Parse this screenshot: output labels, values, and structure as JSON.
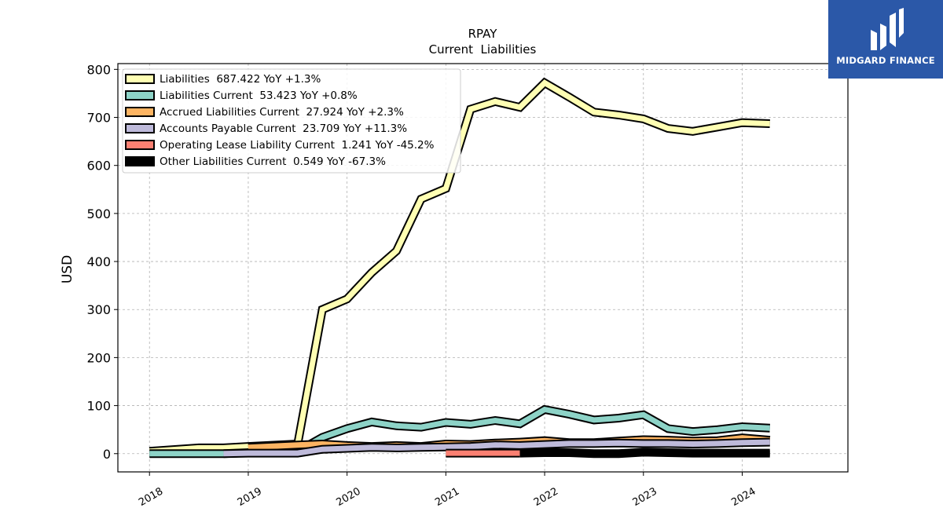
{
  "brand": {
    "name": "MIDGARD FINANCE",
    "bg_color": "#2b58a8",
    "icon": "midgard-logo-icon"
  },
  "chart_data": {
    "type": "line",
    "title": "RPAY",
    "subtitle": "Current  Liabilities",
    "xlabel": "",
    "ylabel": "USD",
    "ylim": [
      -38,
      812
    ],
    "yticks": [
      0,
      100,
      200,
      300,
      400,
      500,
      600,
      700,
      800
    ],
    "xlim": [
      2017.68,
      2025.07
    ],
    "xticks": [
      2018,
      2019,
      2020,
      2021,
      2022,
      2023,
      2024
    ],
    "xtick_labels": [
      "2018",
      "2019",
      "2020",
      "2021",
      "2022",
      "2023",
      "2024"
    ],
    "grid": true,
    "legend_position": "top-left",
    "series": [
      {
        "name": "Liabilities",
        "legend": "Liabilities  687.422 YoY +1.3%",
        "color": "#ffffb3",
        "points": [
          [
            2018.0,
            5
          ],
          [
            2018.5,
            12
          ],
          [
            2018.75,
            12
          ],
          [
            2019.0,
            15
          ],
          [
            2019.5,
            20
          ],
          [
            2019.75,
            300
          ],
          [
            2020.0,
            322
          ],
          [
            2020.25,
            377
          ],
          [
            2020.5,
            422
          ],
          [
            2020.75,
            530
          ],
          [
            2021.0,
            552
          ],
          [
            2021.25,
            717
          ],
          [
            2021.5,
            733
          ],
          [
            2021.75,
            721
          ],
          [
            2022.0,
            772
          ],
          [
            2022.25,
            742
          ],
          [
            2022.5,
            711
          ],
          [
            2022.75,
            705
          ],
          [
            2023.0,
            697
          ],
          [
            2023.25,
            677
          ],
          [
            2023.5,
            671
          ],
          [
            2023.75,
            680
          ],
          [
            2024.0,
            689
          ],
          [
            2024.28,
            687
          ]
        ]
      },
      {
        "name": "Liabilities Current",
        "legend": "Liabilities Current  53.423 YoY +0.8%",
        "color": "#8dd3c7",
        "points": [
          [
            2018.0,
            0
          ],
          [
            2018.75,
            0
          ],
          [
            2019.0,
            2
          ],
          [
            2019.5,
            5
          ],
          [
            2019.75,
            34
          ],
          [
            2020.0,
            52
          ],
          [
            2020.25,
            66
          ],
          [
            2020.5,
            58
          ],
          [
            2020.75,
            55
          ],
          [
            2021.0,
            65
          ],
          [
            2021.25,
            61
          ],
          [
            2021.5,
            69
          ],
          [
            2021.75,
            62
          ],
          [
            2022.0,
            92
          ],
          [
            2022.25,
            82
          ],
          [
            2022.5,
            70
          ],
          [
            2022.75,
            74
          ],
          [
            2023.0,
            81
          ],
          [
            2023.25,
            52
          ],
          [
            2023.5,
            46
          ],
          [
            2023.75,
            50
          ],
          [
            2024.0,
            56
          ],
          [
            2024.28,
            53
          ]
        ]
      },
      {
        "name": "Accrued Liabilities Current",
        "legend": "Accrued Liabilities Current  27.924 YoY +2.3%",
        "color": "#fdb462",
        "points": [
          [
            2019.0,
            13
          ],
          [
            2019.5,
            18
          ],
          [
            2019.75,
            20
          ],
          [
            2020.0,
            17
          ],
          [
            2020.25,
            15
          ],
          [
            2020.5,
            17
          ],
          [
            2020.75,
            15
          ],
          [
            2021.0,
            20
          ],
          [
            2021.25,
            19
          ],
          [
            2021.5,
            22
          ],
          [
            2021.75,
            24
          ],
          [
            2022.0,
            27
          ],
          [
            2022.25,
            23
          ],
          [
            2022.5,
            23
          ],
          [
            2022.75,
            26
          ],
          [
            2023.0,
            29
          ],
          [
            2023.25,
            28
          ],
          [
            2023.5,
            26
          ],
          [
            2023.75,
            27
          ],
          [
            2024.0,
            33
          ],
          [
            2024.28,
            28
          ]
        ]
      },
      {
        "name": "Accounts Payable Current",
        "legend": "Accounts Payable Current  23.709 YoY +11.3%",
        "color": "#bebada",
        "points": [
          [
            2018.75,
            0
          ],
          [
            2019.0,
            1
          ],
          [
            2019.5,
            1
          ],
          [
            2019.75,
            9
          ],
          [
            2020.0,
            11
          ],
          [
            2020.25,
            13
          ],
          [
            2020.5,
            12
          ],
          [
            2020.75,
            13
          ],
          [
            2021.0,
            14
          ],
          [
            2021.25,
            15
          ],
          [
            2021.5,
            18
          ],
          [
            2021.75,
            17
          ],
          [
            2022.0,
            19
          ],
          [
            2022.25,
            21
          ],
          [
            2022.5,
            21
          ],
          [
            2022.75,
            22
          ],
          [
            2023.0,
            21
          ],
          [
            2023.25,
            21
          ],
          [
            2023.5,
            20
          ],
          [
            2023.75,
            21
          ],
          [
            2024.0,
            23
          ],
          [
            2024.28,
            24
          ]
        ]
      },
      {
        "name": "Operating Lease Liability Current",
        "legend": "Operating Lease Liability Current  1.241 YoY -45.2%",
        "color": "#fb8072",
        "points": [
          [
            2021.0,
            1
          ],
          [
            2021.75,
            1
          ]
        ]
      },
      {
        "name": "Other Liabilities Current",
        "legend": "Other Liabilities Current  0.549 YoY -67.3%",
        "color": "#000000",
        "points": [
          [
            2021.75,
            1
          ],
          [
            2022.0,
            2
          ],
          [
            2022.25,
            2
          ],
          [
            2022.5,
            0
          ],
          [
            2022.75,
            0
          ],
          [
            2023.0,
            3
          ],
          [
            2023.25,
            2
          ],
          [
            2023.5,
            1
          ],
          [
            2023.75,
            1
          ],
          [
            2024.0,
            1
          ],
          [
            2024.28,
            1
          ]
        ]
      }
    ]
  }
}
